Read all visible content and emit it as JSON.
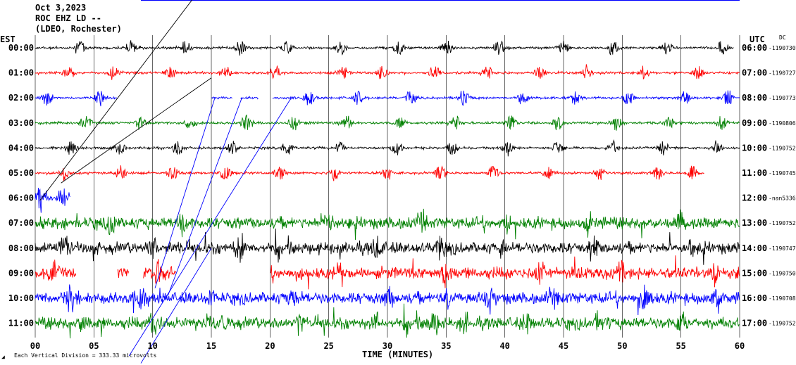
{
  "header": {
    "date": "Oct 3,2023",
    "station": "ROC EHZ LD --",
    "network": "(LDEO, Rochester)"
  },
  "labels": {
    "left_tz": "EST",
    "right_tz": "UTC",
    "dc": "DC",
    "xlabel": "TIME (MINUTES)",
    "footer_mark": "◢",
    "footer": "Each Vertical Division =  333.33 microvolts"
  },
  "colors": {
    "trace_cycle": [
      "#000000",
      "#ff0000",
      "#0000ff",
      "#008000"
    ],
    "grid": "#000000",
    "top_bar": "#0000ff",
    "trigger_line_blue": "#0000ff",
    "trigger_line_black": "#000000"
  },
  "chart_data": {
    "type": "line",
    "title": "ROC EHZ LD --",
    "xlabel": "TIME (MINUTES)",
    "xlim": [
      0,
      60
    ],
    "x_ticks": [
      "00",
      "05",
      "10",
      "15",
      "20",
      "25",
      "30",
      "35",
      "40",
      "45",
      "50",
      "55",
      "60"
    ],
    "rows": [
      {
        "est": "00:00",
        "utc": "06:00",
        "dc": "-1190730",
        "color": "#000000",
        "end_min": 59.5,
        "amp": "low",
        "bursts": [
          3.8,
          8.2,
          12.8,
          17.5,
          21.5,
          26,
          31,
          35,
          39.5,
          45,
          49.2,
          53.8,
          58.5
        ]
      },
      {
        "est": "01:00",
        "utc": "07:00",
        "dc": "-1190727",
        "color": "#ff0000",
        "end_min": 60,
        "amp": "low",
        "bursts": [
          2.8,
          6.7,
          11.5,
          16.2,
          20.5,
          26.3,
          29.5,
          34,
          38.5,
          43,
          47,
          51.8,
          56.5
        ]
      },
      {
        "est": "02:00",
        "utc": "08:00",
        "dc": "-1190773",
        "color": "#0000ff",
        "end_min": 60,
        "amp": "low",
        "gaps": [
          [
            7,
            15
          ],
          [
            16.8,
            17.5
          ],
          [
            19,
            20.2
          ]
        ],
        "bursts": [
          1,
          5.5,
          23.3,
          27.5,
          32,
          36.5,
          41.5,
          46,
          50.5,
          55.3,
          59
        ]
      },
      {
        "est": "03:00",
        "utc": "09:00",
        "dc": "-1190806",
        "color": "#008000",
        "end_min": 60,
        "amp": "low",
        "bursts": [
          4.3,
          9,
          13.2,
          18,
          22,
          26.5,
          31,
          35.8,
          40.5,
          44.5,
          49.5,
          54,
          58.5
        ]
      },
      {
        "est": "04:00",
        "utc": "10:00",
        "dc": "-1190752",
        "color": "#000000",
        "end_min": 60,
        "amp": "low",
        "bursts": [
          3,
          7.2,
          12.2,
          16.8,
          21.5,
          26,
          30.8,
          35.5,
          40.2,
          44.5,
          49.2,
          53.5,
          58
        ]
      },
      {
        "est": "05:00",
        "utc": "11:00",
        "dc": "-1190745",
        "color": "#ff0000",
        "end_min": 57,
        "amp": "low",
        "bursts": [
          2.4,
          7.3,
          11.7,
          16.2,
          20.8,
          25.5,
          30,
          34.5,
          39,
          43.7,
          48,
          53,
          56
        ]
      },
      {
        "est": "06:00",
        "utc": "12:00",
        "dc": "-nan5336",
        "color": "#0000ff",
        "end_min": 3.0,
        "amp": "medium",
        "bursts": [
          0.5,
          2.4
        ]
      },
      {
        "est": "07:00",
        "utc": "13:00",
        "dc": "-1190752",
        "color": "#008000",
        "end_min": 60,
        "amp": "high",
        "bursts": [
          6.5,
          12.5,
          25,
          33,
          40,
          47,
          55
        ]
      },
      {
        "est": "08:00",
        "utc": "14:00",
        "dc": "-1190747",
        "color": "#000000",
        "end_min": 60,
        "amp": "high",
        "bursts": [
          2.5,
          10,
          17.5,
          29,
          34.5,
          40,
          47.5,
          56
        ]
      },
      {
        "est": "09:00",
        "utc": "15:00",
        "dc": "-1190750",
        "color": "#ff0000",
        "end_min": 60,
        "amp": "high",
        "gaps": [
          [
            3.5,
            7
          ],
          [
            8,
            9.2
          ],
          [
            12,
            20
          ]
        ],
        "bursts": [
          1.5,
          10.5,
          26,
          35,
          43,
          50,
          58
        ]
      },
      {
        "est": "10:00",
        "utc": "16:00",
        "dc": "-1190708",
        "color": "#0000ff",
        "end_min": 60,
        "amp": "high",
        "bursts": [
          3,
          9,
          15,
          22,
          30,
          35,
          38.5,
          44,
          52,
          58
        ]
      },
      {
        "est": "11:00",
        "utc": "17:00",
        "dc": "-1190752",
        "color": "#008000",
        "end_min": 60,
        "amp": "high",
        "bursts": [
          4,
          10,
          16,
          22.5,
          29,
          34,
          36.5,
          42,
          48,
          55
        ]
      }
    ]
  }
}
